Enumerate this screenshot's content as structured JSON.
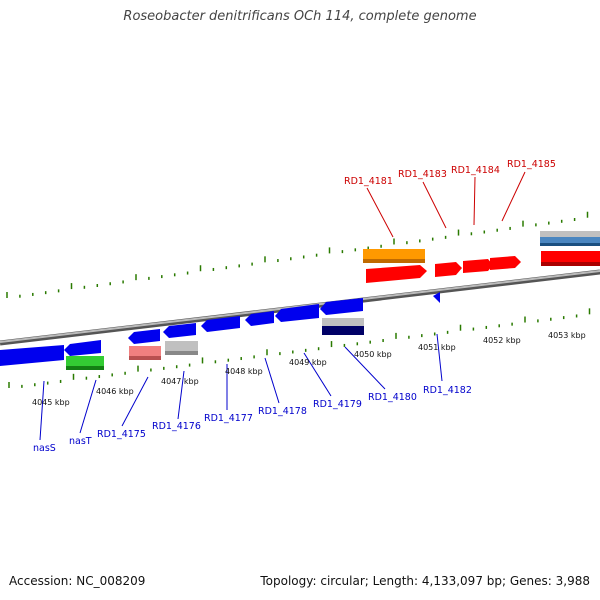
{
  "title": "Roseobacter denitrificans OCh 114, complete genome",
  "footer": {
    "accession": "Accession: NC_008209",
    "summary": "Topology: circular; Length: 4,133,097 bp; Genes: 3,988"
  },
  "scale_labels": [
    "4045 kbp",
    "4046 kbp",
    "4047 kbp",
    "4048 kbp",
    "4049 kbp",
    "4050 kbp",
    "4051 kbp",
    "4052 kbp",
    "4053 kbp"
  ],
  "gene_labels_top": [
    "RD1_4181",
    "RD1_4183",
    "RD1_4184",
    "RD1_4185"
  ],
  "gene_labels_bottom": [
    "nasS",
    "nasT",
    "RD1_4175",
    "RD1_4176",
    "RD1_4177",
    "RD1_4178",
    "RD1_4179",
    "RD1_4180",
    "RD1_4182"
  ],
  "colors": {
    "forward": "#ff0000",
    "reverse": "#0000ee",
    "orange": "#ff9900",
    "green": "#33cc33",
    "pink": "#f08080",
    "gray": "#c0c0c0",
    "navy": "#000066",
    "steelblue": "#4a86c0",
    "tick": "#2a7a00",
    "backbone": "#888888"
  }
}
